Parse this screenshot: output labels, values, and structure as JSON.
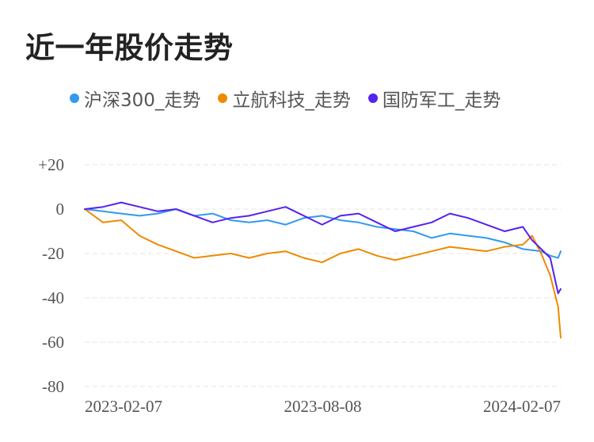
{
  "title": "近一年股价走势",
  "chart_data": {
    "type": "line",
    "y_ticks": [
      "+20",
      "0",
      "-20",
      "-40",
      "-60",
      "-80"
    ],
    "y_tick_values": [
      20,
      0,
      -20,
      -40,
      -60,
      -80
    ],
    "ylim": [
      -80,
      20
    ],
    "x_tick_labels": [
      "2023-02-07",
      "2023-08-08",
      "2024-02-07"
    ],
    "x_range": [
      "2023-02-07",
      "2024-02-07"
    ],
    "grid": true,
    "legend_position": "top",
    "series": [
      {
        "name": "沪深300_走势",
        "color": "#3399ee",
        "points": [
          [
            "2023-02-07",
            0
          ],
          [
            "2023-02-21",
            -1
          ],
          [
            "2023-03-07",
            -2
          ],
          [
            "2023-03-21",
            -3
          ],
          [
            "2023-04-04",
            -2
          ],
          [
            "2023-04-18",
            0
          ],
          [
            "2023-05-02",
            -3
          ],
          [
            "2023-05-16",
            -2
          ],
          [
            "2023-05-30",
            -5
          ],
          [
            "2023-06-13",
            -6
          ],
          [
            "2023-06-27",
            -5
          ],
          [
            "2023-07-11",
            -7
          ],
          [
            "2023-07-25",
            -4
          ],
          [
            "2023-08-08",
            -3
          ],
          [
            "2023-08-22",
            -5
          ],
          [
            "2023-09-05",
            -6
          ],
          [
            "2023-09-19",
            -8
          ],
          [
            "2023-10-03",
            -9
          ],
          [
            "2023-10-17",
            -10
          ],
          [
            "2023-10-31",
            -13
          ],
          [
            "2023-11-14",
            -11
          ],
          [
            "2023-11-28",
            -12
          ],
          [
            "2023-12-12",
            -13
          ],
          [
            "2023-12-26",
            -15
          ],
          [
            "2024-01-09",
            -18
          ],
          [
            "2024-01-23",
            -19
          ],
          [
            "2024-01-30",
            -21
          ],
          [
            "2024-02-05",
            -22
          ],
          [
            "2024-02-07",
            -19
          ]
        ]
      },
      {
        "name": "立航科技_走势",
        "color": "#ee8a00",
        "points": [
          [
            "2023-02-07",
            0
          ],
          [
            "2023-02-21",
            -6
          ],
          [
            "2023-03-07",
            -5
          ],
          [
            "2023-03-21",
            -12
          ],
          [
            "2023-04-04",
            -16
          ],
          [
            "2023-04-18",
            -19
          ],
          [
            "2023-05-02",
            -22
          ],
          [
            "2023-05-16",
            -21
          ],
          [
            "2023-05-30",
            -20
          ],
          [
            "2023-06-13",
            -22
          ],
          [
            "2023-06-27",
            -20
          ],
          [
            "2023-07-11",
            -19
          ],
          [
            "2023-07-25",
            -22
          ],
          [
            "2023-08-08",
            -24
          ],
          [
            "2023-08-22",
            -20
          ],
          [
            "2023-09-05",
            -18
          ],
          [
            "2023-09-19",
            -21
          ],
          [
            "2023-10-03",
            -23
          ],
          [
            "2023-10-17",
            -21
          ],
          [
            "2023-10-31",
            -19
          ],
          [
            "2023-11-14",
            -17
          ],
          [
            "2023-11-28",
            -18
          ],
          [
            "2023-12-12",
            -19
          ],
          [
            "2023-12-26",
            -17
          ],
          [
            "2024-01-09",
            -16
          ],
          [
            "2024-01-16",
            -12
          ],
          [
            "2024-01-23",
            -20
          ],
          [
            "2024-01-30",
            -30
          ],
          [
            "2024-02-05",
            -44
          ],
          [
            "2024-02-07",
            -58
          ]
        ]
      },
      {
        "name": "国防军工_走势",
        "color": "#5522ee",
        "points": [
          [
            "2023-02-07",
            0
          ],
          [
            "2023-02-21",
            1
          ],
          [
            "2023-03-07",
            3
          ],
          [
            "2023-03-21",
            1
          ],
          [
            "2023-04-04",
            -1
          ],
          [
            "2023-04-18",
            0
          ],
          [
            "2023-05-02",
            -3
          ],
          [
            "2023-05-16",
            -6
          ],
          [
            "2023-05-30",
            -4
          ],
          [
            "2023-06-13",
            -3
          ],
          [
            "2023-06-27",
            -1
          ],
          [
            "2023-07-11",
            1
          ],
          [
            "2023-07-25",
            -3
          ],
          [
            "2023-08-08",
            -7
          ],
          [
            "2023-08-22",
            -3
          ],
          [
            "2023-09-05",
            -2
          ],
          [
            "2023-09-19",
            -6
          ],
          [
            "2023-10-03",
            -10
          ],
          [
            "2023-10-17",
            -8
          ],
          [
            "2023-10-31",
            -6
          ],
          [
            "2023-11-14",
            -2
          ],
          [
            "2023-11-28",
            -4
          ],
          [
            "2023-12-12",
            -7
          ],
          [
            "2023-12-26",
            -10
          ],
          [
            "2024-01-09",
            -8
          ],
          [
            "2024-01-16",
            -14
          ],
          [
            "2024-01-23",
            -18
          ],
          [
            "2024-01-30",
            -22
          ],
          [
            "2024-02-05",
            -38
          ],
          [
            "2024-02-07",
            -36
          ]
        ]
      }
    ]
  }
}
